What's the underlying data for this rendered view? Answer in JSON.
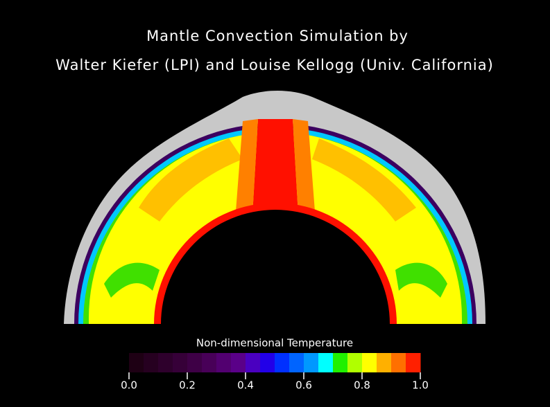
{
  "title": [
    "Mantle Convection Simulation by",
    "Walter Kiefer (LPI) and Louise Kellogg (Univ. California)"
  ],
  "colorbar": {
    "label": "Non-dimensional Temperature",
    "range": [
      0,
      1
    ],
    "ticks": [
      {
        "value": 0,
        "label": "0.0"
      },
      {
        "value": 0.2,
        "label": "0.2"
      },
      {
        "value": 0.4,
        "label": "0.4"
      },
      {
        "value": 0.6,
        "label": "0.6"
      },
      {
        "value": 0.8,
        "label": "0.8"
      },
      {
        "value": 1,
        "label": "1.0"
      }
    ],
    "colors": [
      "#1e0014",
      "#260020",
      "#2e002c",
      "#360038",
      "#3e0046",
      "#480058",
      "#520070",
      "#5a0088",
      "#4a00c0",
      "#2200e8",
      "#0030ff",
      "#0064ff",
      "#0098ff",
      "#00ffff",
      "#20f000",
      "#b0ff00",
      "#ffff00",
      "#ffb000",
      "#ff7000",
      "#ff2000"
    ]
  }
}
